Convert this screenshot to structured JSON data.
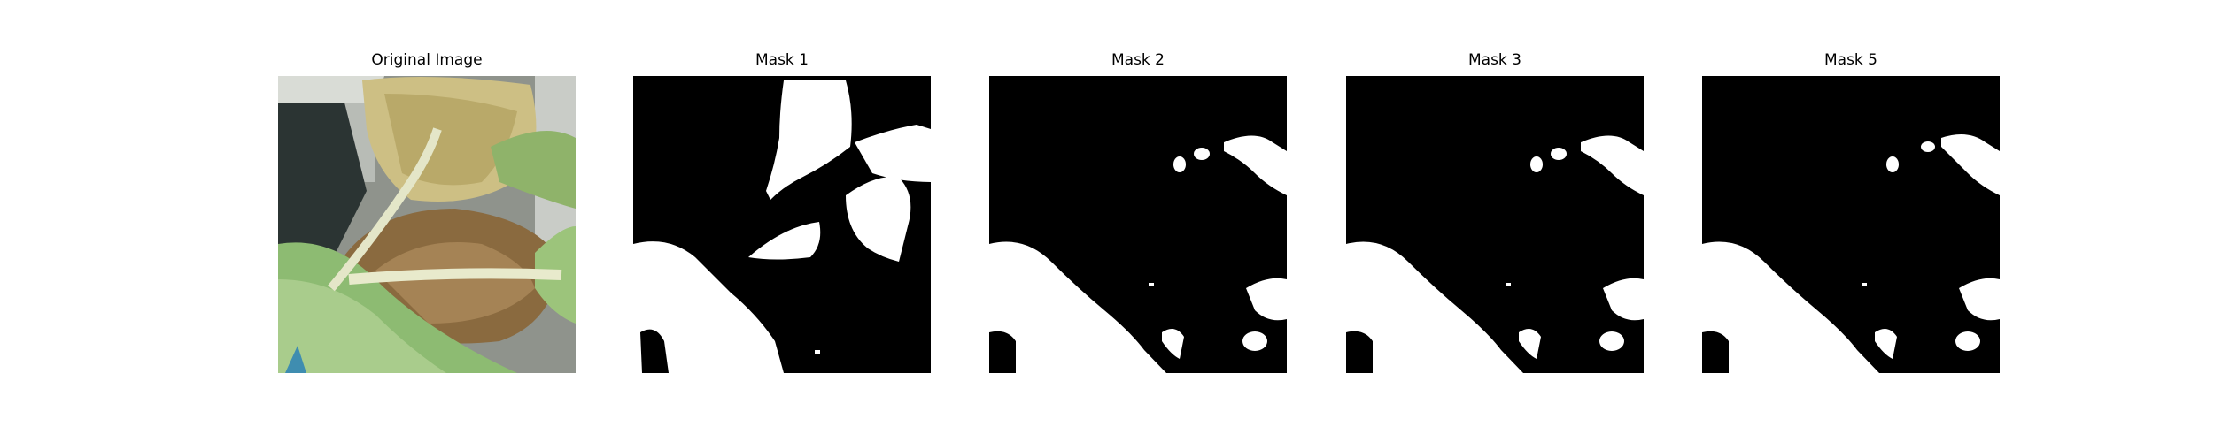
{
  "figure": {
    "panels": [
      {
        "id": "original",
        "title": "Original Image"
      },
      {
        "id": "mask1",
        "title": "Mask 1"
      },
      {
        "id": "mask2",
        "title": "Mask 2"
      },
      {
        "id": "mask3",
        "title": "Mask 3"
      },
      {
        "id": "mask5",
        "title": "Mask 5"
      }
    ]
  },
  "colors": {
    "mask_background": "#000000",
    "mask_foreground": "#ffffff"
  }
}
